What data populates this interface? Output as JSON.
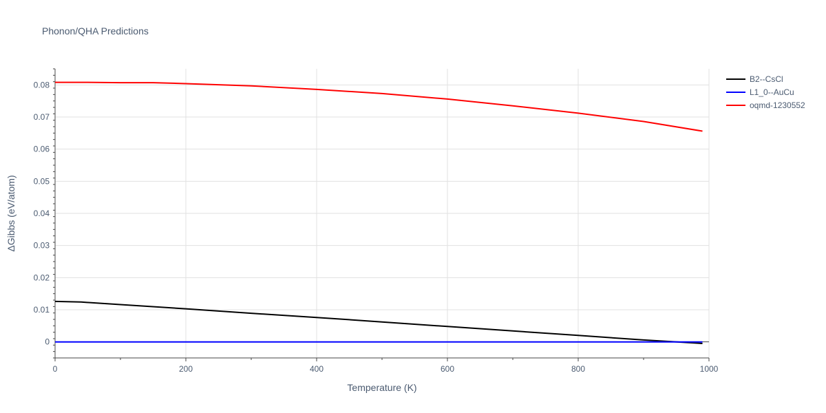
{
  "chart_data": {
    "type": "line",
    "title": "Phonon/QHA Predictions",
    "xlabel": "Temperature (K)",
    "ylabel": "ΔGibbs (eV/atom)",
    "xlim": [
      0,
      1000
    ],
    "ylim": [
      -0.005,
      0.085
    ],
    "xticks": [
      0,
      200,
      400,
      600,
      800,
      1000
    ],
    "yticks": [
      0,
      0.01,
      0.02,
      0.03,
      0.04,
      0.05,
      0.06,
      0.07,
      0.08
    ],
    "xtick_labels": [
      "0",
      "200",
      "400",
      "600",
      "800",
      "1000"
    ],
    "ytick_labels": [
      "0",
      "0.01",
      "0.02",
      "0.03",
      "0.04",
      "0.05",
      "0.06",
      "0.07",
      "0.08"
    ],
    "grid": true,
    "legend_position": "top-right",
    "series": [
      {
        "name": "B2--CsCl",
        "color": "#000000",
        "x": [
          0,
          40,
          100,
          200,
          300,
          400,
          500,
          600,
          700,
          800,
          900,
          990
        ],
        "y": [
          0.0126,
          0.0124,
          0.0116,
          0.0103,
          0.0089,
          0.0076,
          0.0062,
          0.0048,
          0.0034,
          0.002,
          0.0006,
          -0.0005
        ]
      },
      {
        "name": "L1_0--AuCu",
        "color": "#0000ff",
        "x": [
          0,
          990
        ],
        "y": [
          0,
          0
        ]
      },
      {
        "name": "oqmd-1230552",
        "color": "#ff0000",
        "x": [
          0,
          50,
          100,
          150,
          200,
          300,
          400,
          500,
          600,
          700,
          800,
          900,
          990
        ],
        "y": [
          0.0808,
          0.0808,
          0.0807,
          0.0807,
          0.0804,
          0.0797,
          0.0786,
          0.0773,
          0.0756,
          0.0735,
          0.0712,
          0.0686,
          0.0656
        ]
      }
    ]
  }
}
